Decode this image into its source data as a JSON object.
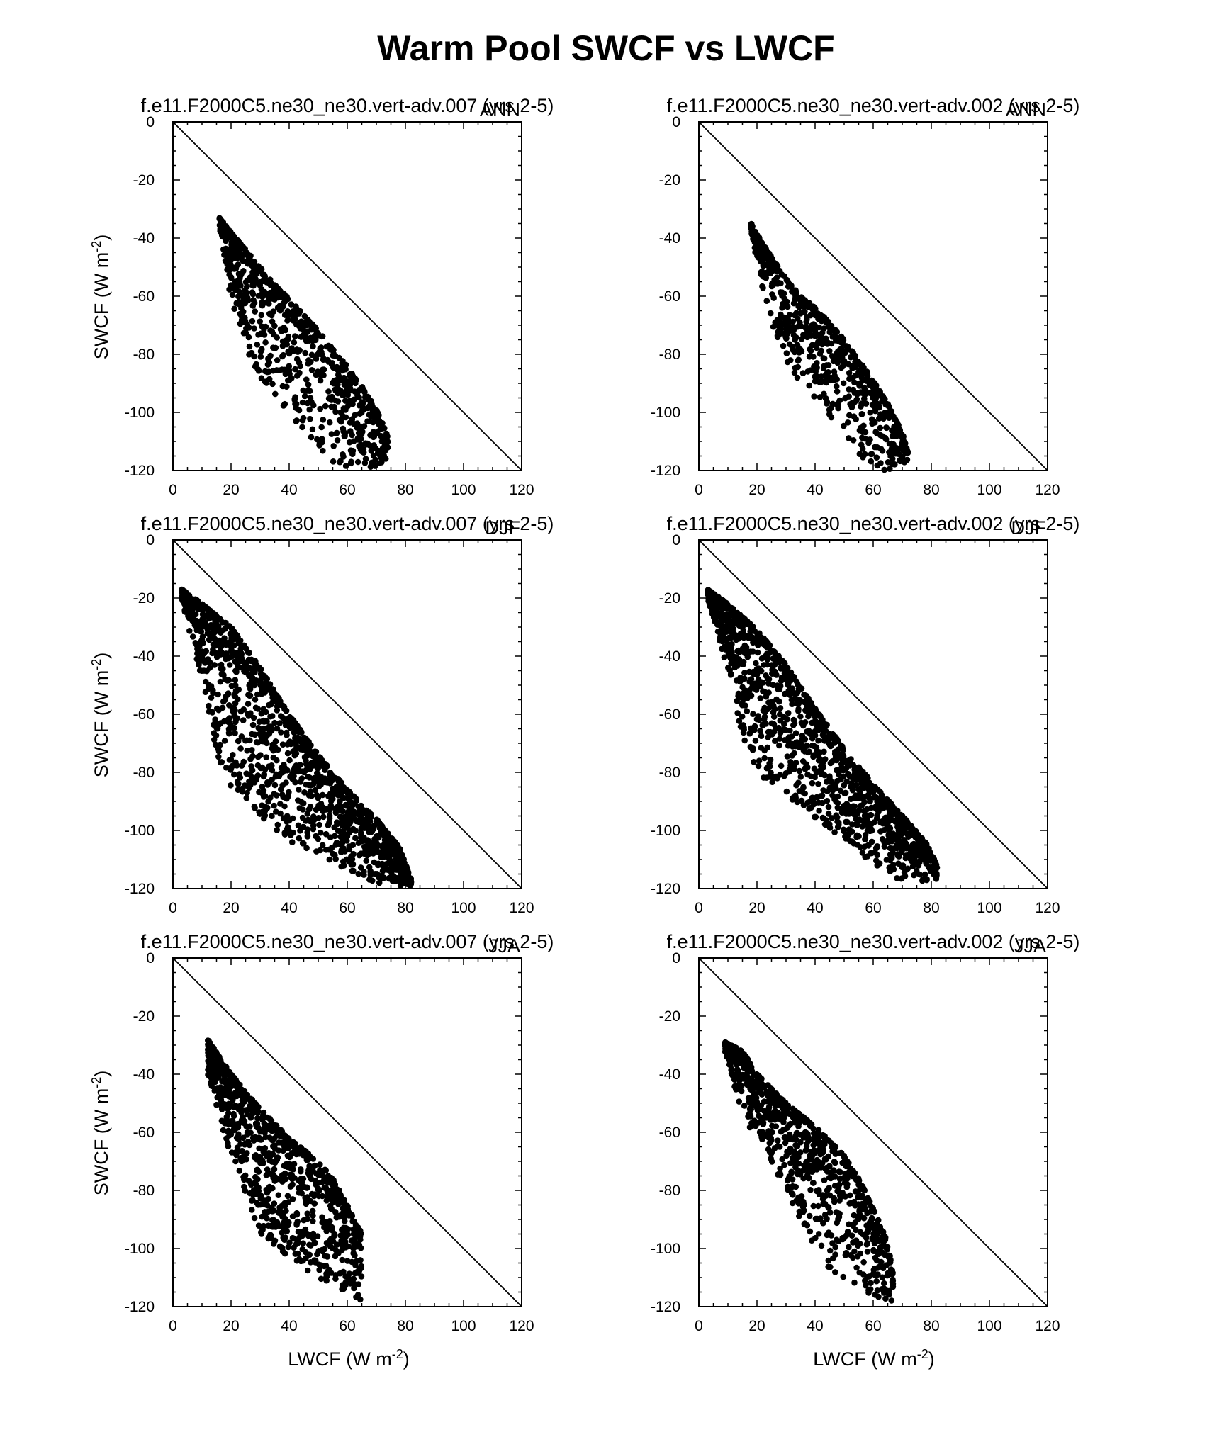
{
  "figure": {
    "title": "Warm Pool SWCF vs LWCF",
    "xlabel": "LWCF (W m",
    "ylabel": "SWCF (W m",
    "unit_superscript": "-2",
    "unit_close": ")"
  },
  "chart_data": [
    {
      "type": "scatter",
      "title": "f.e11.F2000C5.ne30_ne30.vert-adv.007 (yrs 2-5)",
      "season": "ANN",
      "xlim": [
        0,
        120
      ],
      "ylim": [
        -120,
        0
      ],
      "xticks": [
        "0",
        "20",
        "40",
        "60",
        "80",
        "100",
        "120"
      ],
      "yticks": [
        "0",
        "-20",
        "-40",
        "-60",
        "-80",
        "-100",
        "-120"
      ],
      "reference_line": {
        "x": [
          0,
          120
        ],
        "y": [
          0,
          -120
        ]
      },
      "envelope": {
        "upper": [
          [
            16,
            -33
          ],
          [
            20,
            -38
          ],
          [
            25,
            -44
          ],
          [
            30,
            -50
          ],
          [
            35,
            -56
          ],
          [
            40,
            -61
          ],
          [
            45,
            -66
          ],
          [
            50,
            -72
          ],
          [
            55,
            -78
          ],
          [
            60,
            -84
          ],
          [
            65,
            -91
          ],
          [
            70,
            -99
          ],
          [
            74,
            -108
          ]
        ],
        "lower": [
          [
            16,
            -36
          ],
          [
            20,
            -62
          ],
          [
            25,
            -78
          ],
          [
            30,
            -88
          ],
          [
            35,
            -95
          ],
          [
            40,
            -101
          ],
          [
            45,
            -107
          ],
          [
            50,
            -112
          ],
          [
            55,
            -117
          ],
          [
            60,
            -119
          ],
          [
            65,
            -120
          ],
          [
            70,
            -119
          ],
          [
            74,
            -118
          ]
        ]
      },
      "n_points": 750
    },
    {
      "type": "scatter",
      "title": "f.e11.F2000C5.ne30_ne30.vert-adv.002 (yrs 2-5)",
      "season": "ANN",
      "xlim": [
        0,
        120
      ],
      "ylim": [
        -120,
        0
      ],
      "xticks": [
        "0",
        "20",
        "40",
        "60",
        "80",
        "100",
        "120"
      ],
      "yticks": [
        "0",
        "-20",
        "-40",
        "-60",
        "-80",
        "-100",
        "-120"
      ],
      "reference_line": {
        "x": [
          0,
          120
        ],
        "y": [
          0,
          -120
        ]
      },
      "envelope": {
        "upper": [
          [
            18,
            -35
          ],
          [
            22,
            -42
          ],
          [
            26,
            -48
          ],
          [
            30,
            -54
          ],
          [
            35,
            -60
          ],
          [
            40,
            -64
          ],
          [
            45,
            -69
          ],
          [
            50,
            -75
          ],
          [
            55,
            -82
          ],
          [
            60,
            -89
          ],
          [
            65,
            -97
          ],
          [
            70,
            -107
          ],
          [
            72,
            -114
          ]
        ],
        "lower": [
          [
            18,
            -38
          ],
          [
            22,
            -58
          ],
          [
            26,
            -72
          ],
          [
            30,
            -82
          ],
          [
            35,
            -90
          ],
          [
            40,
            -96
          ],
          [
            45,
            -102
          ],
          [
            50,
            -108
          ],
          [
            55,
            -114
          ],
          [
            60,
            -119
          ],
          [
            65,
            -120
          ],
          [
            70,
            -118
          ],
          [
            72,
            -116
          ]
        ]
      },
      "n_points": 700
    },
    {
      "type": "scatter",
      "title": "f.e11.F2000C5.ne30_ne30.vert-adv.007 (yrs 2-5)",
      "season": "DJF",
      "xlim": [
        0,
        120
      ],
      "ylim": [
        -120,
        0
      ],
      "xticks": [
        "0",
        "20",
        "40",
        "60",
        "80",
        "100",
        "120"
      ],
      "yticks": [
        "0",
        "-20",
        "-40",
        "-60",
        "-80",
        "-100",
        "-120"
      ],
      "reference_line": {
        "x": [
          0,
          120
        ],
        "y": [
          0,
          -120
        ]
      },
      "envelope": {
        "upper": [
          [
            3,
            -17
          ],
          [
            10,
            -22
          ],
          [
            20,
            -30
          ],
          [
            30,
            -44
          ],
          [
            40,
            -60
          ],
          [
            50,
            -74
          ],
          [
            60,
            -86
          ],
          [
            70,
            -96
          ],
          [
            78,
            -106
          ],
          [
            82,
            -117
          ]
        ],
        "lower": [
          [
            3,
            -20
          ],
          [
            10,
            -50
          ],
          [
            15,
            -75
          ],
          [
            20,
            -85
          ],
          [
            30,
            -95
          ],
          [
            40,
            -104
          ],
          [
            50,
            -108
          ],
          [
            60,
            -114
          ],
          [
            70,
            -118
          ],
          [
            78,
            -119
          ],
          [
            82,
            -119
          ]
        ]
      },
      "n_points": 1300
    },
    {
      "type": "scatter",
      "title": "f.e11.F2000C5.ne30_ne30.vert-adv.002 (yrs 2-5)",
      "season": "DJF",
      "xlim": [
        0,
        120
      ],
      "ylim": [
        -120,
        0
      ],
      "xticks": [
        "0",
        "20",
        "40",
        "60",
        "80",
        "100",
        "120"
      ],
      "yticks": [
        "0",
        "-20",
        "-40",
        "-60",
        "-80",
        "-100",
        "-120"
      ],
      "reference_line": {
        "x": [
          0,
          120
        ],
        "y": [
          0,
          -120
        ]
      },
      "envelope": {
        "upper": [
          [
            3,
            -17
          ],
          [
            10,
            -22
          ],
          [
            20,
            -31
          ],
          [
            30,
            -43
          ],
          [
            40,
            -58
          ],
          [
            50,
            -72
          ],
          [
            60,
            -84
          ],
          [
            70,
            -95
          ],
          [
            78,
            -104
          ],
          [
            82,
            -112
          ]
        ],
        "lower": [
          [
            3,
            -20
          ],
          [
            10,
            -45
          ],
          [
            15,
            -70
          ],
          [
            20,
            -80
          ],
          [
            30,
            -88
          ],
          [
            40,
            -96
          ],
          [
            50,
            -104
          ],
          [
            60,
            -112
          ],
          [
            70,
            -118
          ],
          [
            78,
            -118
          ],
          [
            82,
            -117
          ]
        ]
      },
      "n_points": 1300
    },
    {
      "type": "scatter",
      "title": "f.e11.F2000C5.ne30_ne30.vert-adv.007 (yrs 2-5)",
      "season": "JJA",
      "xlim": [
        0,
        120
      ],
      "ylim": [
        -120,
        0
      ],
      "xticks": [
        "0",
        "20",
        "40",
        "60",
        "80",
        "100",
        "120"
      ],
      "yticks": [
        "0",
        "-20",
        "-40",
        "-60",
        "-80",
        "-100",
        "-120"
      ],
      "reference_line": {
        "x": [
          0,
          120
        ],
        "y": [
          0,
          -120
        ]
      },
      "envelope": {
        "upper": [
          [
            12,
            -28
          ],
          [
            20,
            -40
          ],
          [
            30,
            -52
          ],
          [
            40,
            -62
          ],
          [
            50,
            -70
          ],
          [
            55,
            -76
          ],
          [
            60,
            -85
          ],
          [
            65,
            -95
          ]
        ],
        "lower": [
          [
            12,
            -40
          ],
          [
            18,
            -62
          ],
          [
            25,
            -82
          ],
          [
            30,
            -95
          ],
          [
            40,
            -104
          ],
          [
            50,
            -110
          ],
          [
            60,
            -116
          ],
          [
            65,
            -118
          ]
        ]
      },
      "n_points": 900
    },
    {
      "type": "scatter",
      "title": "f.e11.F2000C5.ne30_ne30.vert-adv.002 (yrs 2-5)",
      "season": "JJA",
      "xlim": [
        0,
        120
      ],
      "ylim": [
        -120,
        0
      ],
      "xticks": [
        "0",
        "20",
        "40",
        "60",
        "80",
        "100",
        "120"
      ],
      "yticks": [
        "0",
        "-20",
        "-40",
        "-60",
        "-80",
        "-100",
        "-120"
      ],
      "reference_line": {
        "x": [
          0,
          120
        ],
        "y": [
          0,
          -120
        ]
      },
      "envelope": {
        "upper": [
          [
            9,
            -29
          ],
          [
            15,
            -32
          ],
          [
            20,
            -40
          ],
          [
            30,
            -50
          ],
          [
            40,
            -58
          ],
          [
            50,
            -68
          ],
          [
            55,
            -76
          ],
          [
            60,
            -86
          ],
          [
            65,
            -98
          ],
          [
            67,
            -110
          ]
        ],
        "lower": [
          [
            9,
            -32
          ],
          [
            15,
            -55
          ],
          [
            20,
            -62
          ],
          [
            30,
            -80
          ],
          [
            40,
            -100
          ],
          [
            45,
            -108
          ],
          [
            50,
            -110
          ],
          [
            60,
            -118
          ],
          [
            65,
            -118
          ],
          [
            67,
            -118
          ]
        ]
      },
      "n_points": 850
    }
  ]
}
